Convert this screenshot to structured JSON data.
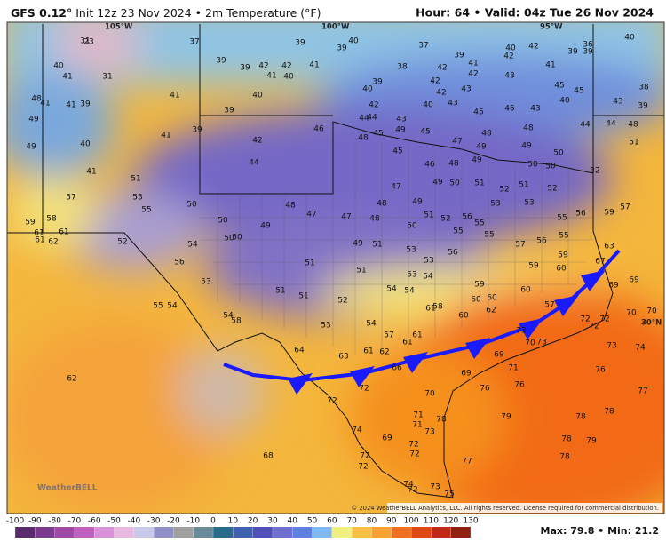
{
  "header": {
    "model": "GFS 0.12°",
    "title": "Init 12z 23 Nov 2024 • 2m Temperature (°F)",
    "valid": "Hour: 64 • Valid: 04z Tue 26 Nov 2024"
  },
  "map": {
    "lon_labels": [
      "105°W",
      "100°W",
      "95°W"
    ],
    "lat_label": "30°N",
    "stations": [
      31,
      23,
      37,
      39,
      40,
      37,
      40,
      42,
      36,
      40,
      40,
      31,
      39,
      39,
      42,
      42,
      41,
      41,
      40,
      39,
      39,
      41,
      38,
      39,
      40,
      42,
      42,
      42,
      43,
      41,
      39,
      39,
      41,
      48,
      41,
      41,
      39,
      49,
      41,
      40,
      42,
      42,
      43,
      43,
      42,
      44,
      44,
      43,
      40,
      45,
      45,
      43,
      45,
      40,
      45,
      38,
      43,
      39,
      39,
      39,
      41,
      44,
      44,
      48,
      49,
      40,
      42,
      46,
      48,
      45,
      49,
      45,
      47,
      48,
      48,
      49,
      49,
      50,
      51,
      44,
      45,
      46,
      48,
      49,
      50,
      50,
      32,
      41,
      51,
      49,
      50,
      51,
      52,
      51,
      52,
      47,
      57,
      53,
      55,
      50,
      48,
      47,
      47,
      48,
      48,
      49,
      53,
      53,
      56,
      59,
      57,
      59,
      58,
      50,
      49,
      51,
      52,
      56,
      55,
      55,
      61,
      61,
      62,
      61,
      52,
      54,
      50,
      50,
      50,
      55,
      55,
      57,
      56,
      55,
      63,
      56,
      51,
      49,
      51,
      53,
      53,
      56,
      59,
      59,
      60,
      67,
      53,
      51,
      53,
      54,
      54,
      54,
      59,
      60,
      69,
      69,
      51,
      51,
      55,
      54,
      52,
      58,
      61,
      60,
      60,
      62,
      60,
      57,
      54,
      58,
      53,
      54,
      70,
      72,
      72,
      70,
      57,
      61,
      61,
      73,
      70,
      73,
      72,
      73,
      74,
      64,
      63,
      61,
      62,
      66,
      69,
      69,
      71,
      76,
      77,
      72,
      70,
      76,
      76,
      62,
      72,
      71,
      71,
      78,
      73,
      79,
      78,
      78,
      74,
      69,
      72,
      78,
      79,
      78,
      68,
      77,
      72,
      72,
      72,
      74,
      72,
      73,
      75
    ]
  },
  "colorbar": {
    "ticks": [
      -100,
      -90,
      -80,
      -70,
      -60,
      -50,
      -40,
      -30,
      -20,
      -10,
      0,
      10,
      20,
      30,
      40,
      50,
      60,
      70,
      80,
      90,
      100,
      110,
      120,
      130
    ]
  },
  "footer": {
    "copyright": "© 2024 WeatherBELL Analytics, LLC. All rights reserved. License required for commercial distribution.",
    "stats": "Max: 79.8 • Min: 21.2",
    "logo": "WeatherBELL"
  }
}
